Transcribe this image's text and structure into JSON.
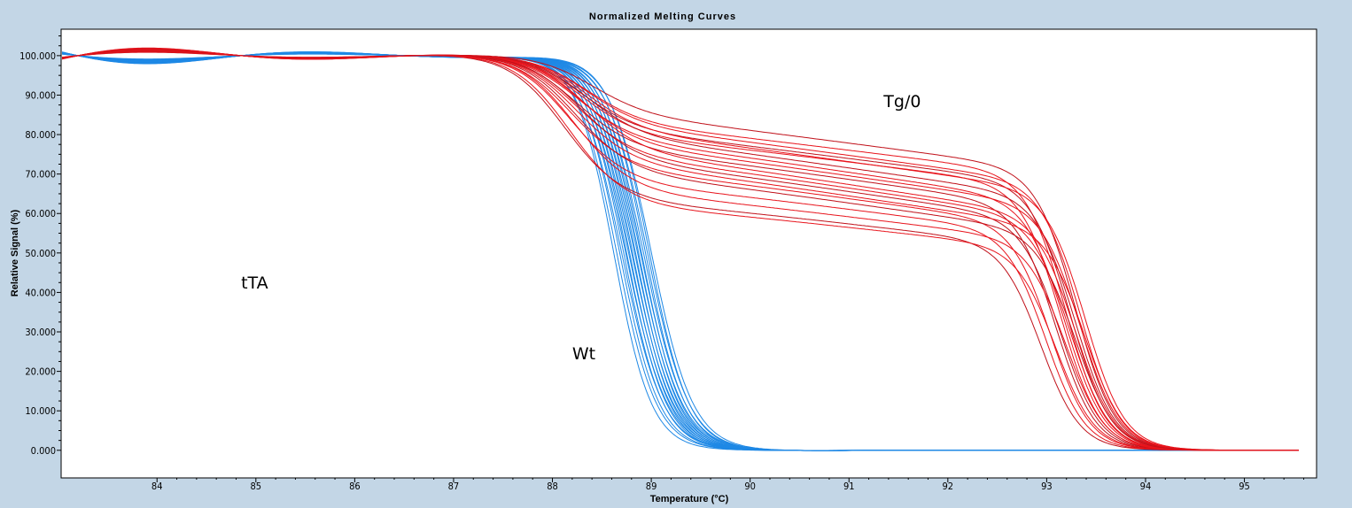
{
  "chart_data": {
    "type": "line",
    "title": "Normalized Melting Curves",
    "xlabel": "Temperature (°C)",
    "ylabel": "Relative Signal (%)",
    "xlim": [
      83.03,
      95.73
    ],
    "ylim": [
      -7,
      106.7
    ],
    "x_ticks": [
      "84",
      "85",
      "86",
      "87",
      "88",
      "89",
      "90",
      "91",
      "92",
      "93",
      "94",
      "95"
    ],
    "y_ticks": [
      "0.000",
      "10.000",
      "20.000",
      "30.000",
      "40.000",
      "50.000",
      "60.000",
      "70.000",
      "80.000",
      "90.000",
      "100.000"
    ],
    "grid": false,
    "annotations": [
      {
        "text": "tTA",
        "x": 84.85,
        "y": 41
      },
      {
        "text": "Wt",
        "x": 88.2,
        "y": 23
      },
      {
        "text": "Tg/0",
        "x": 91.35,
        "y": 87
      }
    ],
    "series": [
      {
        "name": "Wt",
        "color": "#1e88e5",
        "model": "single sigmoid: 100/(1+exp((T-Tm)/w))",
        "curves": [
          {
            "Tm": 88.62,
            "w": 0.19
          },
          {
            "Tm": 88.65,
            "w": 0.2
          },
          {
            "Tm": 88.68,
            "w": 0.2
          },
          {
            "Tm": 88.7,
            "w": 0.21
          },
          {
            "Tm": 88.72,
            "w": 0.2
          },
          {
            "Tm": 88.74,
            "w": 0.21
          },
          {
            "Tm": 88.75,
            "w": 0.2
          },
          {
            "Tm": 88.77,
            "w": 0.21
          },
          {
            "Tm": 88.78,
            "w": 0.2
          },
          {
            "Tm": 88.8,
            "w": 0.21
          },
          {
            "Tm": 88.81,
            "w": 0.2
          },
          {
            "Tm": 88.83,
            "w": 0.21
          },
          {
            "Tm": 88.84,
            "w": 0.2
          },
          {
            "Tm": 88.86,
            "w": 0.21
          },
          {
            "Tm": 88.87,
            "w": 0.2
          },
          {
            "Tm": 88.89,
            "w": 0.21
          },
          {
            "Tm": 88.9,
            "w": 0.2
          },
          {
            "Tm": 88.92,
            "w": 0.21
          },
          {
            "Tm": 88.94,
            "w": 0.2
          },
          {
            "Tm": 88.96,
            "w": 0.21
          },
          {
            "Tm": 88.98,
            "w": 0.2
          },
          {
            "Tm": 89.0,
            "w": 0.21
          }
        ]
      },
      {
        "name": "Tg/0",
        "color": "#e8141c",
        "model": "two-step: plateau p at 90 °C declining by slope per °C, first drop Tm1, final drop Tm2",
        "curves": [
          {
            "Tm1": 88.35,
            "p": 81,
            "slope": -3.2,
            "Tm2": 93.3
          },
          {
            "Tm1": 88.3,
            "p": 79,
            "slope": -3.0,
            "Tm2": 93.2
          },
          {
            "Tm1": 88.3,
            "p": 78,
            "slope": -3.3,
            "Tm2": 93.35
          },
          {
            "Tm1": 88.25,
            "p": 77,
            "slope": -3.1,
            "Tm2": 93.25
          },
          {
            "Tm1": 88.3,
            "p": 76.5,
            "slope": -3.4,
            "Tm2": 93.4
          },
          {
            "Tm1": 88.25,
            "p": 76,
            "slope": -3.0,
            "Tm2": 93.15
          },
          {
            "Tm1": 88.3,
            "p": 75,
            "slope": -3.5,
            "Tm2": 93.3
          },
          {
            "Tm1": 88.2,
            "p": 74,
            "slope": -3.6,
            "Tm2": 93.2
          },
          {
            "Tm1": 88.25,
            "p": 73,
            "slope": -3.5,
            "Tm2": 93.35
          },
          {
            "Tm1": 88.2,
            "p": 72,
            "slope": -3.4,
            "Tm2": 93.1
          },
          {
            "Tm1": 88.3,
            "p": 71,
            "slope": -3.7,
            "Tm2": 93.3
          },
          {
            "Tm1": 88.2,
            "p": 70,
            "slope": -3.6,
            "Tm2": 93.25
          },
          {
            "Tm1": 88.25,
            "p": 69,
            "slope": -3.5,
            "Tm2": 93.15
          },
          {
            "Tm1": 88.2,
            "p": 68,
            "slope": -3.6,
            "Tm2": 93.4
          },
          {
            "Tm1": 88.15,
            "p": 67,
            "slope": -3.3,
            "Tm2": 93.05
          },
          {
            "Tm1": 88.2,
            "p": 66,
            "slope": -3.4,
            "Tm2": 93.3
          },
          {
            "Tm1": 88.15,
            "p": 64,
            "slope": -3.0,
            "Tm2": 93.0
          },
          {
            "Tm1": 88.2,
            "p": 62,
            "slope": -2.9,
            "Tm2": 93.2
          },
          {
            "Tm1": 88.1,
            "p": 60,
            "slope": -2.7,
            "Tm2": 92.95
          },
          {
            "Tm1": 88.15,
            "p": 59,
            "slope": -2.6,
            "Tm2": 93.1
          }
        ]
      }
    ]
  }
}
